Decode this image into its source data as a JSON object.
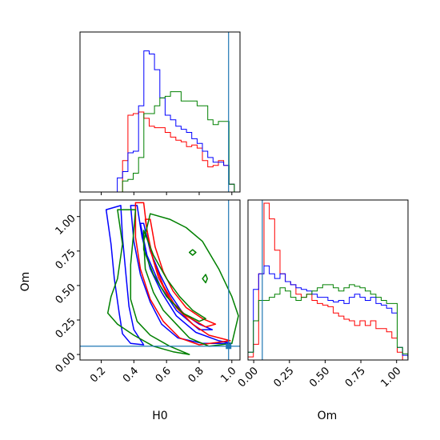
{
  "chart_data": {
    "type": "corner",
    "parameters": [
      "H0",
      "Om"
    ],
    "colors": {
      "red": "#ff0000",
      "blue": "#0000ff",
      "green": "#008000",
      "truth": "#1f77b4"
    },
    "truths": {
      "H0": 0.98,
      "Om": 0.06
    },
    "panels": {
      "h0_hist": {
        "xlim": [
          0.07,
          1.05
        ],
        "bin_width": 0.0326,
        "bin_start": 0.07,
        "series": [
          {
            "color": "red",
            "values": [
              0,
              0,
              0,
              0,
              0,
              0,
              0,
              0,
              0.2,
              0.49,
              0.5,
              0.51,
              0.47,
              0.42,
              0.41,
              0.41,
              0.38,
              0.35,
              0.33,
              0.32,
              0.29,
              0.3,
              0.28,
              0.2,
              0.16,
              0.17,
              0.2,
              0.17,
              0.05,
              0
            ]
          },
          {
            "color": "blue",
            "values": [
              0,
              0,
              0,
              0,
              0,
              0,
              0,
              0.09,
              0.13,
              0.25,
              0.26,
              0.55,
              0.9,
              0.88,
              0.78,
              0.6,
              0.49,
              0.46,
              0.42,
              0.4,
              0.38,
              0.34,
              0.31,
              0.26,
              0.22,
              0.19,
              0.19,
              0.17,
              0.05,
              0
            ]
          },
          {
            "color": "green",
            "values": [
              0,
              0,
              0,
              0,
              0,
              0,
              0,
              0,
              0.07,
              0.08,
              0.12,
              0.22,
              0.5,
              0.5,
              0.55,
              0.6,
              0.61,
              0.64,
              0.64,
              0.58,
              0.58,
              0.58,
              0.55,
              0.55,
              0.46,
              0.43,
              0.45,
              0.45,
              0.05,
              0
            ]
          }
        ]
      },
      "om_hist": {
        "xlim": [
          -0.04,
          1.08
        ],
        "bin_width": 0.0373,
        "bin_start": -0.04,
        "series": [
          {
            "color": "red",
            "values": [
              0.02,
              0.1,
              0.55,
              1.0,
              0.9,
              0.7,
              0.55,
              0.5,
              0.48,
              0.42,
              0.4,
              0.42,
              0.38,
              0.36,
              0.35,
              0.34,
              0.3,
              0.28,
              0.26,
              0.25,
              0.22,
              0.25,
              0.22,
              0.25,
              0.2,
              0.2,
              0.18,
              0.14,
              0.05,
              0
            ]
          },
          {
            "color": "blue",
            "values": [
              0.05,
              0.45,
              0.55,
              0.6,
              0.55,
              0.52,
              0.55,
              0.5,
              0.48,
              0.46,
              0.45,
              0.44,
              0.42,
              0.4,
              0.4,
              0.38,
              0.37,
              0.38,
              0.36,
              0.4,
              0.42,
              0.4,
              0.38,
              0.4,
              0.36,
              0.35,
              0.33,
              0.3,
              0.08,
              0.03
            ]
          },
          {
            "color": "green",
            "values": [
              0.05,
              0.25,
              0.38,
              0.38,
              0.4,
              0.42,
              0.46,
              0.44,
              0.4,
              0.38,
              0.4,
              0.42,
              0.44,
              0.46,
              0.48,
              0.48,
              0.46,
              0.44,
              0.46,
              0.48,
              0.47,
              0.46,
              0.44,
              0.42,
              0.4,
              0.38,
              0.36,
              0.36,
              0.08,
              0.04
            ]
          }
        ]
      },
      "scatter2d": {
        "xlim": [
          0.07,
          1.05
        ],
        "ylim": [
          -0.04,
          1.12
        ],
        "contours": [
          {
            "color": "blue",
            "points": [
              [
                0.23,
                1.05
              ],
              [
                0.26,
                0.8
              ],
              [
                0.28,
                0.55
              ],
              [
                0.31,
                0.3
              ],
              [
                0.33,
                0.15
              ],
              [
                0.38,
                0.08
              ],
              [
                0.46,
                0.07
              ],
              [
                0.4,
                0.18
              ],
              [
                0.37,
                0.35
              ],
              [
                0.35,
                0.6
              ],
              [
                0.33,
                0.85
              ],
              [
                0.32,
                1.08
              ]
            ]
          },
          {
            "color": "blue",
            "points": [
              [
                0.42,
                1.08
              ],
              [
                0.45,
                0.85
              ],
              [
                0.5,
                0.62
              ],
              [
                0.57,
                0.45
              ],
              [
                0.66,
                0.28
              ],
              [
                0.78,
                0.16
              ],
              [
                0.92,
                0.1
              ],
              [
                1.0,
                0.08
              ],
              [
                0.82,
                0.08
              ],
              [
                0.67,
                0.12
              ],
              [
                0.57,
                0.22
              ],
              [
                0.5,
                0.38
              ],
              [
                0.44,
                0.58
              ],
              [
                0.4,
                0.82
              ],
              [
                0.38,
                1.08
              ]
            ]
          },
          {
            "color": "blue",
            "points": [
              [
                0.46,
                0.95
              ],
              [
                0.5,
                0.75
              ],
              [
                0.56,
                0.58
              ],
              [
                0.62,
                0.44
              ],
              [
                0.7,
                0.3
              ],
              [
                0.8,
                0.22
              ],
              [
                0.88,
                0.18
              ],
              [
                0.8,
                0.18
              ],
              [
                0.66,
                0.32
              ],
              [
                0.56,
                0.5
              ],
              [
                0.48,
                0.72
              ],
              [
                0.44,
                0.95
              ]
            ]
          },
          {
            "color": "red",
            "points": [
              [
                0.46,
                1.1
              ],
              [
                0.48,
                0.9
              ],
              [
                0.52,
                0.68
              ],
              [
                0.58,
                0.5
              ],
              [
                0.66,
                0.34
              ],
              [
                0.76,
                0.22
              ],
              [
                0.86,
                0.14
              ],
              [
                0.99,
                0.1
              ],
              [
                0.8,
                0.07
              ],
              [
                0.68,
                0.12
              ],
              [
                0.58,
                0.24
              ],
              [
                0.5,
                0.4
              ],
              [
                0.44,
                0.62
              ],
              [
                0.41,
                0.85
              ],
              [
                0.41,
                1.1
              ]
            ]
          },
          {
            "color": "red",
            "points": [
              [
                0.5,
                0.98
              ],
              [
                0.53,
                0.78
              ],
              [
                0.58,
                0.6
              ],
              [
                0.64,
                0.46
              ],
              [
                0.72,
                0.34
              ],
              [
                0.82,
                0.26
              ],
              [
                0.9,
                0.22
              ],
              [
                0.84,
                0.2
              ],
              [
                0.72,
                0.28
              ],
              [
                0.62,
                0.4
              ],
              [
                0.55,
                0.56
              ],
              [
                0.5,
                0.76
              ],
              [
                0.47,
                0.98
              ]
            ]
          },
          {
            "color": "green",
            "points": [
              [
                0.5,
                1.02
              ],
              [
                0.62,
                0.98
              ],
              [
                0.72,
                0.92
              ],
              [
                0.82,
                0.82
              ],
              [
                0.92,
                0.62
              ],
              [
                1.0,
                0.42
              ],
              [
                1.04,
                0.28
              ],
              [
                1.0,
                0.08
              ],
              [
                0.86,
                0.06
              ],
              [
                0.74,
                0.12
              ],
              [
                0.66,
                0.22
              ],
              [
                0.58,
                0.32
              ],
              [
                0.52,
                0.45
              ],
              [
                0.47,
                0.62
              ],
              [
                0.46,
                0.82
              ]
            ]
          },
          {
            "color": "green",
            "points": [
              [
                0.3,
                1.05
              ],
              [
                0.33,
                0.8
              ],
              [
                0.3,
                0.55
              ],
              [
                0.26,
                0.42
              ],
              [
                0.24,
                0.3
              ],
              [
                0.3,
                0.22
              ],
              [
                0.4,
                0.14
              ],
              [
                0.52,
                0.06
              ],
              [
                0.64,
                0.02
              ],
              [
                0.74,
                0.0
              ],
              [
                0.62,
                0.06
              ],
              [
                0.5,
                0.14
              ],
              [
                0.42,
                0.24
              ],
              [
                0.38,
                0.4
              ],
              [
                0.38,
                0.65
              ],
              [
                0.4,
                0.9
              ],
              [
                0.41,
                1.05
              ]
            ]
          },
          {
            "color": "green",
            "points": [
              [
                0.46,
                0.9
              ],
              [
                0.52,
                0.72
              ],
              [
                0.6,
                0.55
              ],
              [
                0.68,
                0.42
              ],
              [
                0.76,
                0.32
              ],
              [
                0.84,
                0.26
              ],
              [
                0.8,
                0.24
              ],
              [
                0.7,
                0.3
              ],
              [
                0.6,
                0.42
              ],
              [
                0.52,
                0.58
              ],
              [
                0.46,
                0.76
              ]
            ]
          },
          {
            "color": "green",
            "points": [
              [
                0.74,
                0.74
              ],
              [
                0.76,
                0.72
              ],
              [
                0.78,
                0.74
              ],
              [
                0.76,
                0.76
              ]
            ]
          },
          {
            "color": "green",
            "points": [
              [
                0.82,
                0.55
              ],
              [
                0.84,
                0.52
              ],
              [
                0.85,
                0.55
              ],
              [
                0.84,
                0.58
              ]
            ]
          }
        ]
      }
    },
    "h0_ticks": [
      0.2,
      0.4,
      0.6,
      0.8,
      1.0
    ],
    "om_ticks": [
      0.0,
      0.25,
      0.5,
      0.75,
      1.0
    ],
    "h0_tick_labels": [
      "0.2",
      "0.4",
      "0.6",
      "0.8",
      "1.0"
    ],
    "om_tick_labels": [
      "0.00",
      "0.25",
      "0.50",
      "0.75",
      "1.00"
    ],
    "xlabels": {
      "left": "H0",
      "right": "Om"
    },
    "ylabel_left": "Om"
  }
}
